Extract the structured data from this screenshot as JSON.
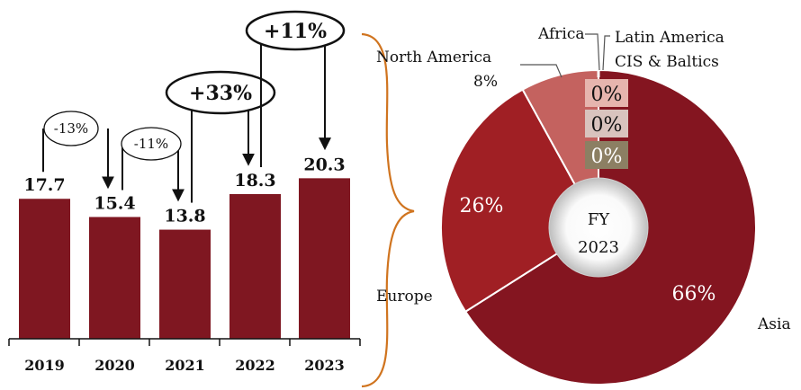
{
  "colors": {
    "bar": "#7f1721",
    "asia": "#841520",
    "europe": "#a01f24",
    "north_america": "#c4625f",
    "small_1": "#e6b5ae",
    "small_2": "#d9c3be",
    "small_3": "#8c7f63",
    "brace": "#d0741f"
  },
  "chart_data": [
    {
      "type": "bar",
      "categories": [
        "2019",
        "2020",
        "2021",
        "2022",
        "2023"
      ],
      "values": [
        17.7,
        15.4,
        13.8,
        18.3,
        20.3
      ],
      "value_labels": [
        "17.7",
        "15.4",
        "13.8",
        "18.3",
        "20.3"
      ],
      "annotations": [
        {
          "from": "2019",
          "to": "2020",
          "label": "-13%"
        },
        {
          "from": "2020",
          "to": "2021",
          "label": "-11%"
        },
        {
          "from": "2021",
          "to": "2022",
          "label": "+33%"
        },
        {
          "from": "2022",
          "to": "2023",
          "label": "+11%"
        }
      ]
    },
    {
      "type": "pie",
      "center_label": [
        "FY",
        "2023"
      ],
      "slices": [
        {
          "name": "Asia",
          "value": 66,
          "label": "66%"
        },
        {
          "name": "Europe",
          "value": 26,
          "label": "26%"
        },
        {
          "name": "North America",
          "value": 8,
          "label": "8%"
        },
        {
          "name": "Africa",
          "value": 0,
          "label": "0%"
        },
        {
          "name": "Latin America",
          "value": 0,
          "label": "0%"
        },
        {
          "name": "CIS & Baltics",
          "value": 0,
          "label": "0%"
        }
      ]
    }
  ]
}
